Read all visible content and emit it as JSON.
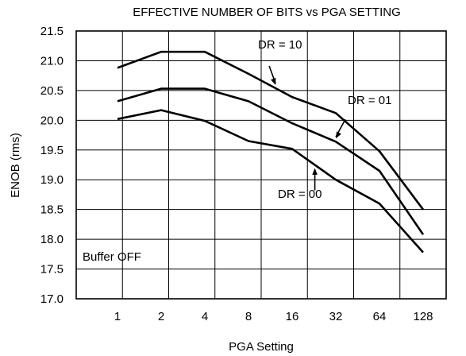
{
  "chart_data": {
    "type": "line",
    "title": "EFFECTIVE NUMBER OF BITS vs PGA SETTING",
    "xlabel": "PGA Setting",
    "ylabel": "ENOB (rms)",
    "categories": [
      "1",
      "2",
      "4",
      "8",
      "16",
      "32",
      "64",
      "128"
    ],
    "ylim": [
      17.0,
      21.5
    ],
    "yticks": [
      "17.0",
      "17.5",
      "18.0",
      "18.5",
      "19.0",
      "19.5",
      "20.0",
      "20.5",
      "21.0",
      "21.5"
    ],
    "grid": true,
    "series": [
      {
        "name": "DR = 10",
        "values": [
          20.88,
          21.15,
          21.15,
          20.78,
          20.39,
          20.12,
          19.48,
          18.5
        ]
      },
      {
        "name": "DR = 01",
        "values": [
          20.32,
          20.53,
          20.53,
          20.32,
          19.95,
          19.64,
          19.15,
          18.08
        ]
      },
      {
        "name": "DR = 00",
        "values": [
          20.02,
          20.17,
          19.99,
          19.65,
          19.52,
          19.0,
          18.6,
          17.78
        ]
      }
    ],
    "note": "Buffer OFF"
  }
}
